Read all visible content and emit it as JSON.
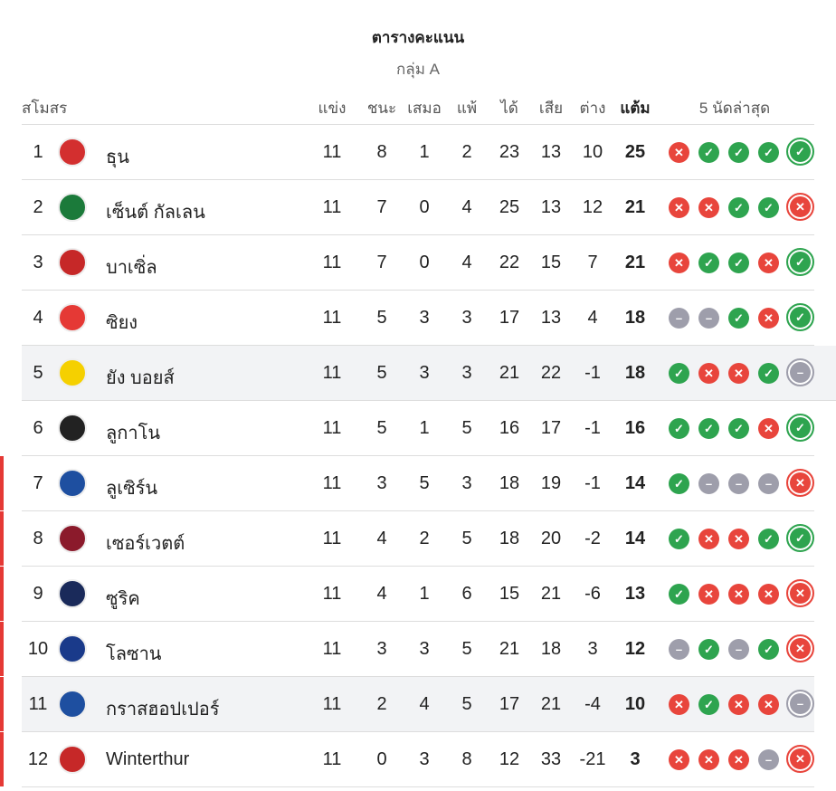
{
  "title": "ตารางคะแนน",
  "group": "กลุ่ม A",
  "headers": {
    "club": "สโมสร",
    "played": "แข่ง",
    "won": "ชนะ",
    "drawn": "เสมอ",
    "lost": "แพ้",
    "gf": "ได้",
    "ga": "เสีย",
    "gd": "ต่าง",
    "pts": "แต้ม",
    "form": "5 นัดล่าสุด"
  },
  "colors": {
    "win": "#2ea44f",
    "loss": "#e8453c",
    "draw": "#9e9eab",
    "zone": "#e53935"
  },
  "rows": [
    {
      "rank": "1",
      "name": "ธุน",
      "p": "11",
      "w": "8",
      "d": "1",
      "l": "2",
      "gf": "23",
      "ga": "13",
      "gd": "10",
      "pts": "25",
      "form": [
        "L",
        "W",
        "W",
        "W",
        "W"
      ],
      "logo": "#d32f2f"
    },
    {
      "rank": "2",
      "name": "เซ็นต์ กัลเลน",
      "p": "11",
      "w": "7",
      "d": "0",
      "l": "4",
      "gf": "25",
      "ga": "13",
      "gd": "12",
      "pts": "21",
      "form": [
        "L",
        "L",
        "W",
        "W",
        "L"
      ],
      "logo": "#1b7a3a"
    },
    {
      "rank": "3",
      "name": "บาเซิ่ล",
      "p": "11",
      "w": "7",
      "d": "0",
      "l": "4",
      "gf": "22",
      "ga": "15",
      "gd": "7",
      "pts": "21",
      "form": [
        "L",
        "W",
        "W",
        "L",
        "W"
      ],
      "logo": "#c62828"
    },
    {
      "rank": "4",
      "name": "ซิยง",
      "p": "11",
      "w": "5",
      "d": "3",
      "l": "3",
      "gf": "17",
      "ga": "13",
      "gd": "4",
      "pts": "18",
      "form": [
        "D",
        "D",
        "W",
        "L",
        "W"
      ],
      "logo": "#e53935"
    },
    {
      "rank": "5",
      "name": "ยัง บอยส์",
      "p": "11",
      "w": "5",
      "d": "3",
      "l": "3",
      "gf": "21",
      "ga": "22",
      "gd": "-1",
      "pts": "18",
      "form": [
        "W",
        "L",
        "L",
        "W",
        "D"
      ],
      "logo": "#f5d000"
    },
    {
      "rank": "6",
      "name": "ลูกาโน",
      "p": "11",
      "w": "5",
      "d": "1",
      "l": "5",
      "gf": "16",
      "ga": "17",
      "gd": "-1",
      "pts": "16",
      "form": [
        "W",
        "W",
        "W",
        "L",
        "W"
      ],
      "logo": "#222222"
    },
    {
      "rank": "7",
      "name": "ลูเซิร์น",
      "p": "11",
      "w": "3",
      "d": "5",
      "l": "3",
      "gf": "18",
      "ga": "19",
      "gd": "-1",
      "pts": "14",
      "form": [
        "W",
        "D",
        "D",
        "D",
        "L"
      ],
      "logo": "#1e4fa0"
    },
    {
      "rank": "8",
      "name": "เซอร์เวตต์",
      "p": "11",
      "w": "4",
      "d": "2",
      "l": "5",
      "gf": "18",
      "ga": "20",
      "gd": "-2",
      "pts": "14",
      "form": [
        "W",
        "L",
        "L",
        "W",
        "W"
      ],
      "logo": "#8b1a2b"
    },
    {
      "rank": "9",
      "name": "ซูริค",
      "p": "11",
      "w": "4",
      "d": "1",
      "l": "6",
      "gf": "15",
      "ga": "21",
      "gd": "-6",
      "pts": "13",
      "form": [
        "W",
        "L",
        "L",
        "L",
        "L"
      ],
      "logo": "#1a2a5a"
    },
    {
      "rank": "10",
      "name": "โลซาน",
      "p": "11",
      "w": "3",
      "d": "3",
      "l": "5",
      "gf": "21",
      "ga": "18",
      "gd": "3",
      "pts": "12",
      "form": [
        "D",
        "W",
        "D",
        "W",
        "L"
      ],
      "logo": "#1a3a8a"
    },
    {
      "rank": "11",
      "name": "กราสฮอปเปอร์",
      "p": "11",
      "w": "2",
      "d": "4",
      "l": "5",
      "gf": "17",
      "ga": "21",
      "gd": "-4",
      "pts": "10",
      "form": [
        "L",
        "W",
        "L",
        "L",
        "D"
      ],
      "logo": "#1e4fa0"
    },
    {
      "rank": "12",
      "name": "Winterthur",
      "p": "11",
      "w": "0",
      "d": "3",
      "l": "8",
      "gf": "12",
      "ga": "33",
      "gd": "-21",
      "pts": "3",
      "form": [
        "L",
        "L",
        "L",
        "D",
        "L"
      ],
      "logo": "#c62828"
    }
  ]
}
